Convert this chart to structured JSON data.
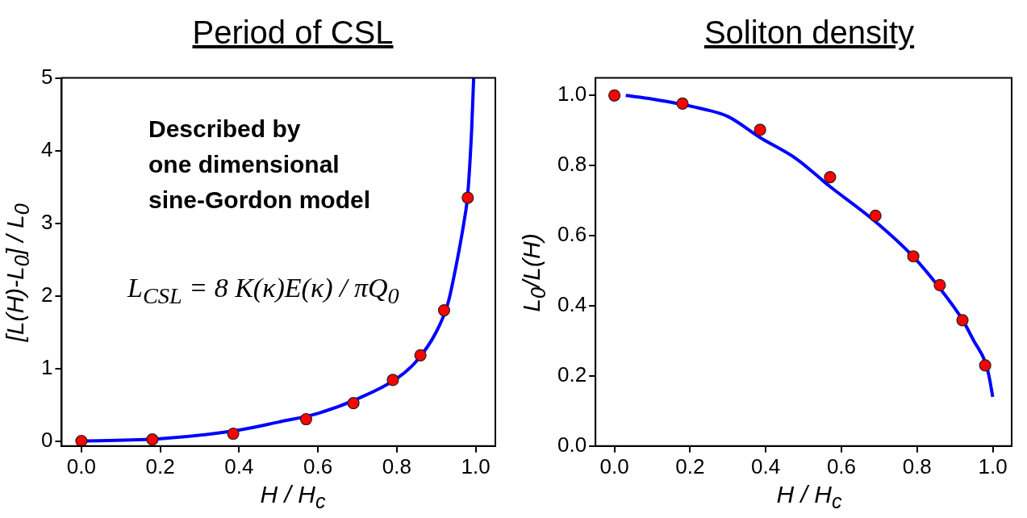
{
  "chart_data": [
    {
      "type": "scatter",
      "title": "Period of CSL",
      "xlabel": "H / H$_{c}$",
      "ylabel": "[L(H)-L$_{0}$] / L$_{0}$",
      "xlim": [
        -0.05,
        1.05
      ],
      "ylim": [
        -0.07,
        5
      ],
      "xticks": [
        {
          "value": 0,
          "label": "0.0"
        },
        {
          "value": 0.2,
          "label": "0.2"
        },
        {
          "value": 0.4,
          "label": "0.4"
        },
        {
          "value": 0.6,
          "label": "0.6"
        },
        {
          "value": 0.8,
          "label": "0.8"
        },
        {
          "value": 1,
          "label": "1.0"
        }
      ],
      "yticks": [
        0,
        1,
        2,
        3,
        4,
        5
      ],
      "grid": false,
      "legend": false,
      "annotations": [
        "Described by\none dimensional\nsine-Gordon model",
        "L$_{CSL}$ = 8 K(κ)E(κ) / πQ$_{0}$"
      ],
      "series": [
        {
          "marker": "circle",
          "color": "#ff0000",
          "x": [
            0,
            0.18,
            0.385,
            0.57,
            0.69,
            0.79,
            0.86,
            0.92,
            0.98
          ],
          "values": [
            0,
            0.02,
            0.1,
            0.3,
            0.52,
            0.84,
            1.18,
            1.8,
            3.35
          ]
        },
        {
          "type": "line",
          "marker": "none",
          "line_style": "solid",
          "color": "#0000ff",
          "x": [
            0,
            0.2,
            0.4,
            0.5,
            0.6,
            0.7,
            0.8,
            0.85,
            0.9,
            0.93,
            0.95,
            0.97,
            0.98,
            0.99,
            0.995
          ],
          "values": [
            0,
            0.03,
            0.15,
            0.26,
            0.38,
            0.58,
            0.86,
            1.1,
            1.5,
            1.9,
            2.4,
            3.0,
            3.4,
            4.3,
            5
          ]
        }
      ]
    },
    {
      "type": "scatter",
      "title": "Soliton density",
      "xlabel": "H / H$_{c}$",
      "ylabel": "L$_{0}$/L(H)",
      "xlim": [
        -0.05,
        1.05
      ],
      "ylim": [
        0,
        1.05
      ],
      "xticks": [
        {
          "value": 0,
          "label": "0.0"
        },
        {
          "value": 0.2,
          "label": "0.2"
        },
        {
          "value": 0.4,
          "label": "0.4"
        },
        {
          "value": 0.6,
          "label": "0.6"
        },
        {
          "value": 0.8,
          "label": "0.8"
        },
        {
          "value": 1,
          "label": "1.0"
        }
      ],
      "yticks": [
        {
          "value": 0,
          "label": "0.0"
        },
        {
          "value": 0.2,
          "label": "0.2"
        },
        {
          "value": 0.4,
          "label": "0.4"
        },
        {
          "value": 0.6,
          "label": "0.6"
        },
        {
          "value": 0.8,
          "label": "0.8"
        },
        {
          "value": 1,
          "label": "1.0"
        }
      ],
      "grid": false,
      "legend": false,
      "series": [
        {
          "marker": "circle",
          "color": "#ff0000",
          "x": [
            0,
            0.18,
            0.385,
            0.57,
            0.69,
            0.79,
            0.86,
            0.92,
            0.98
          ],
          "values": [
            1.0,
            0.977,
            0.902,
            0.767,
            0.657,
            0.541,
            0.459,
            0.359,
            0.23
          ]
        },
        {
          "type": "line",
          "marker": "none",
          "line_style": "solid",
          "color": "#0000ff",
          "x": [
            0.03,
            0.1,
            0.24,
            0.3,
            0.385,
            0.48,
            0.57,
            0.69,
            0.79,
            0.86,
            0.92,
            0.95,
            0.98,
            0.99,
            1.0
          ],
          "values": [
            1.0,
            0.99,
            0.96,
            0.94,
            0.88,
            0.82,
            0.74,
            0.64,
            0.54,
            0.45,
            0.36,
            0.3,
            0.24,
            0.2,
            0.14
          ]
        }
      ]
    }
  ]
}
